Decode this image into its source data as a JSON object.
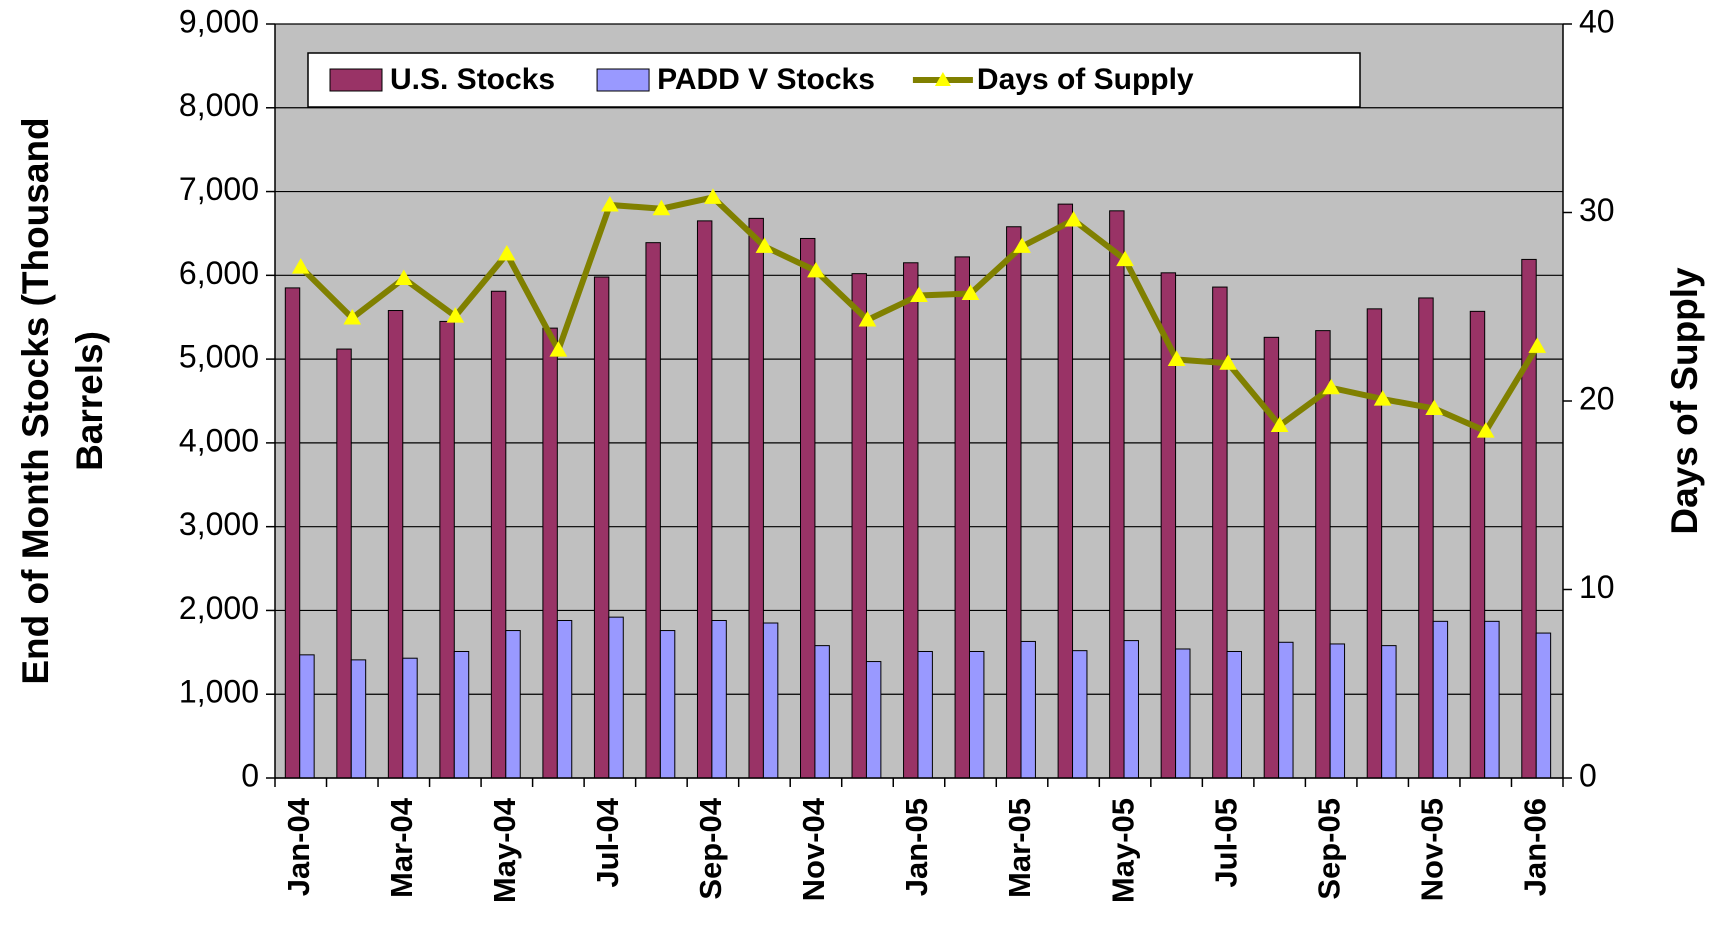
{
  "chart_data": {
    "type": "bar_line",
    "categories": [
      "Jan-04",
      null,
      "Mar-04",
      null,
      "May-04",
      null,
      "Jul-04",
      null,
      "Sep-04",
      null,
      "Nov-04",
      null,
      "Jan-05",
      null,
      "Mar-05",
      null,
      "May-05",
      null,
      "Jul-05",
      null,
      "Sep-05",
      null,
      "Nov-05",
      null,
      "Jan-06"
    ],
    "series": [
      {
        "name": "U.S. Stocks",
        "color": "#993366",
        "kind": "bar",
        "values": [
          5850,
          5120,
          5580,
          5450,
          5810,
          5370,
          5980,
          6390,
          6650,
          6680,
          6440,
          6020,
          6150,
          6220,
          6580,
          6850,
          6770,
          6030,
          5860,
          5260,
          5340,
          5600,
          5730,
          5570,
          6190
        ]
      },
      {
        "name": "PADD V Stocks",
        "color": "#9999ff",
        "kind": "bar",
        "values": [
          1470,
          1410,
          1430,
          1510,
          1760,
          1880,
          1920,
          1760,
          1880,
          1850,
          1580,
          1390,
          1510,
          1510,
          1630,
          1520,
          1640,
          1540,
          1510,
          1620,
          1600,
          1580,
          1870,
          1870,
          1730
        ]
      },
      {
        "name": "Days of Supply",
        "color": "#808000",
        "marker_color": "#ffff00",
        "kind": "line",
        "axis": "y2",
        "values": [
          27.1,
          24.4,
          26.5,
          24.5,
          27.8,
          22.7,
          30.4,
          30.2,
          30.8,
          28.2,
          26.9,
          24.3,
          25.6,
          25.7,
          28.2,
          29.6,
          27.5,
          22.2,
          22.0,
          18.7,
          20.7,
          20.1,
          19.6,
          18.4,
          22.9
        ]
      }
    ],
    "ylabel": [
      "End of Month Stocks (Thousand",
      "Barrels)"
    ],
    "y2label": "Days of Supply",
    "ylim": [
      0,
      9000
    ],
    "yticks": [
      0,
      {
        "value": 1000,
        "label": "1,000"
      },
      {
        "value": 2000,
        "label": "2,000"
      },
      {
        "value": 3000,
        "label": "3,000"
      },
      {
        "value": 4000,
        "label": "4,000"
      },
      {
        "value": 5000,
        "label": "5,000"
      },
      {
        "value": 6000,
        "label": "6,000"
      },
      {
        "value": 7000,
        "label": "7,000"
      },
      {
        "value": 8000,
        "label": "8,000"
      },
      {
        "value": 9000,
        "label": "9,000"
      }
    ],
    "y2lim": [
      0,
      40
    ],
    "y2ticks": [
      0,
      10,
      20,
      30,
      40
    ],
    "grid": true,
    "legend": "top"
  }
}
